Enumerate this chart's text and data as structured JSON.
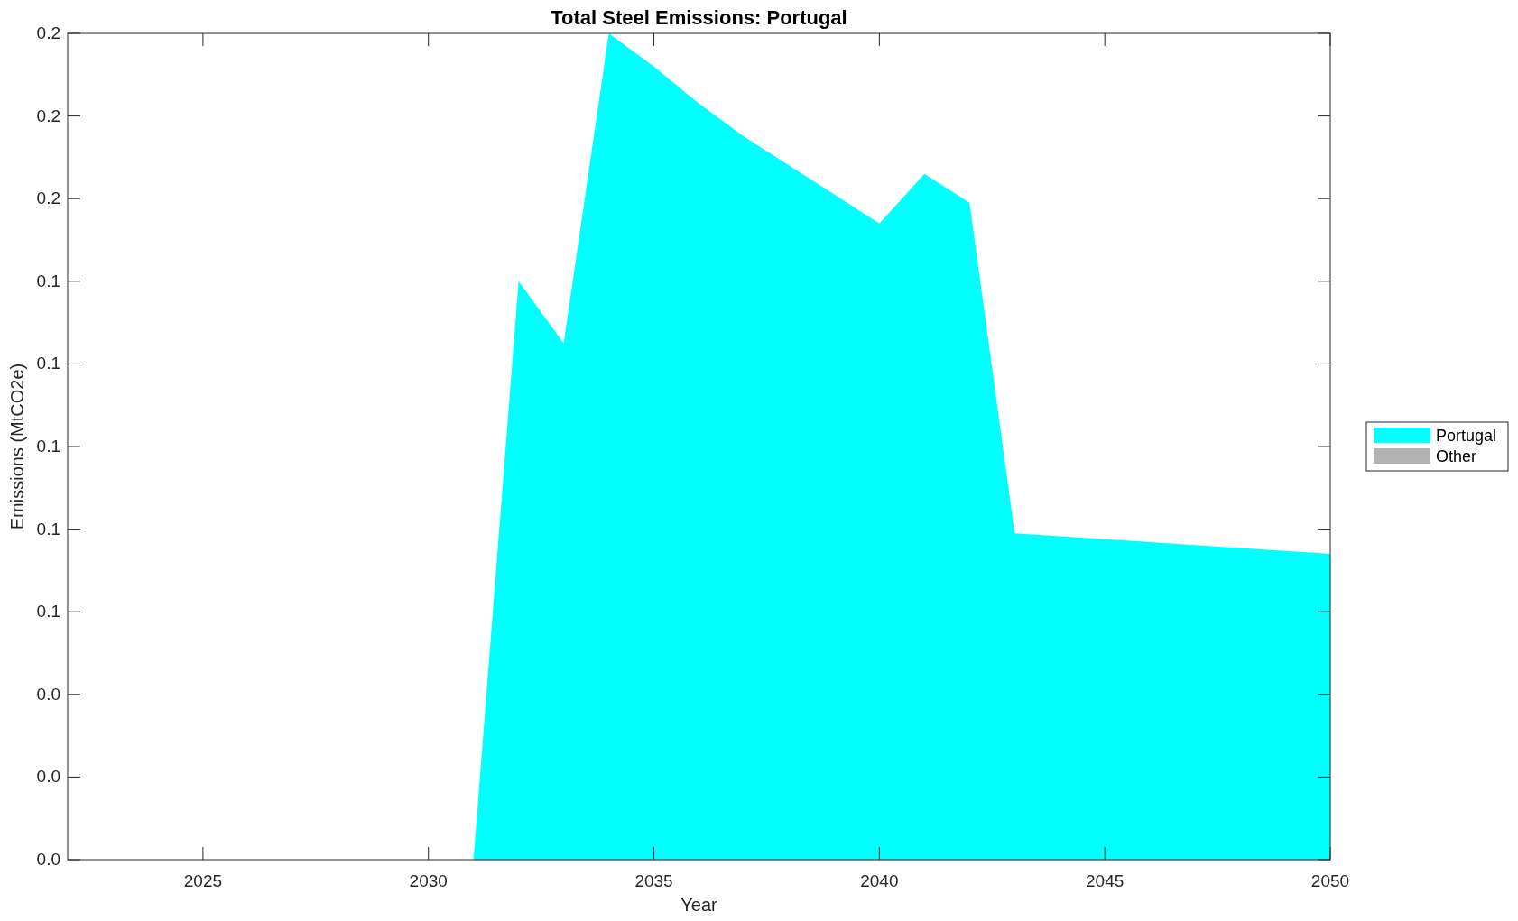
{
  "chart_data": {
    "type": "area",
    "title": "Total Steel Emissions: Portugal",
    "xlabel": "Year",
    "ylabel": "Emissions (MtCO2e)",
    "legend": "right",
    "x": [
      2031,
      2032,
      2033,
      2034,
      2035,
      2036,
      2037,
      2038,
      2039,
      2040,
      2041,
      2042,
      2043,
      2050
    ],
    "series": [
      {
        "name": "Portugal",
        "color": "#00ffff",
        "values": [
          0,
          0.14,
          0.125,
          0.2,
          0.192,
          0.183,
          0.175,
          0.168,
          0.161,
          0.154,
          0.166,
          0.159,
          0.079,
          0.074
        ]
      },
      {
        "name": "Other",
        "color": "#b3b3b3",
        "values": [
          null,
          null,
          null,
          null,
          null,
          null,
          null,
          null,
          null,
          null,
          null,
          null,
          null,
          null
        ]
      }
    ],
    "xlim": [
      2022,
      2050
    ],
    "xticks": [
      2025,
      2030,
      2035,
      2040,
      2045,
      2050
    ],
    "ylim": [
      0,
      0.2
    ],
    "yticks": [
      {
        "value": 0,
        "label": "0.0"
      },
      {
        "value": 0.02,
        "label": "0.0"
      },
      {
        "value": 0.04,
        "label": "0.0"
      },
      {
        "value": 0.06,
        "label": "0.1"
      },
      {
        "value": 0.08,
        "label": "0.1"
      },
      {
        "value": 0.1,
        "label": "0.1"
      },
      {
        "value": 0.12,
        "label": "0.1"
      },
      {
        "value": 0.14,
        "label": "0.1"
      },
      {
        "value": 0.16,
        "label": "0.2"
      },
      {
        "value": 0.18,
        "label": "0.2"
      },
      {
        "value": 0.2,
        "label": "0.2"
      }
    ]
  }
}
